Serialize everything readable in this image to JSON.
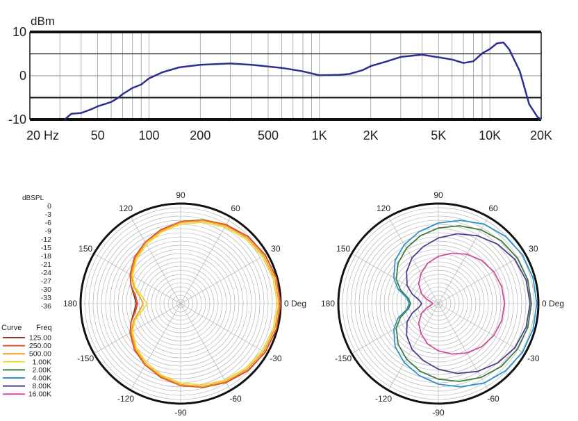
{
  "chart_data": [
    {
      "type": "line",
      "title": "",
      "ylabel": "dBm",
      "xlabel": "",
      "x_scale": "log",
      "xlim": [
        20,
        20000
      ],
      "ylim": [
        -10,
        10
      ],
      "grid": true,
      "x_tick_labels": [
        {
          "value": 20,
          "label": "20  Hz"
        },
        {
          "value": 50,
          "label": "50"
        },
        {
          "value": 100,
          "label": "100"
        },
        {
          "value": 200,
          "label": "200"
        },
        {
          "value": 500,
          "label": "500"
        },
        {
          "value": 1000,
          "label": "1K"
        },
        {
          "value": 2000,
          "label": "2K"
        },
        {
          "value": 5000,
          "label": "5K"
        },
        {
          "value": 10000,
          "label": "10K"
        },
        {
          "value": 20000,
          "label": "20K"
        }
      ],
      "y_tick_labels": [
        {
          "value": 10,
          "label": "10"
        },
        {
          "value": 0,
          "label": "0"
        },
        {
          "value": -10,
          "label": "-10"
        }
      ],
      "reference_lines_y": [
        5,
        -5
      ],
      "color": "#2b2f8f",
      "series": [
        {
          "x": [
            32,
            35,
            40,
            45,
            50,
            60,
            65,
            70,
            80,
            90,
            100,
            120,
            150,
            200,
            300,
            400,
            600,
            800,
            1000,
            1300,
            1500,
            1800,
            2000,
            2500,
            3000,
            4000,
            5000,
            6000,
            7000,
            8000,
            9000,
            10000,
            11000,
            12000,
            13000,
            15000,
            17000,
            19000,
            20000
          ],
          "y": [
            -10,
            -8.7,
            -8.5,
            -7.8,
            -7,
            -6,
            -5.2,
            -4.2,
            -2.8,
            -2,
            -0.6,
            0.8,
            1.9,
            2.5,
            2.8,
            2.5,
            1.8,
            1.0,
            0.1,
            0.2,
            0.4,
            1.3,
            2.2,
            3.3,
            4.3,
            4.8,
            4.2,
            3.7,
            2.9,
            3.3,
            5.1,
            6.1,
            7.4,
            7.6,
            6.0,
            1.0,
            -6.5,
            -9.4,
            -10
          ]
        }
      ]
    },
    {
      "type": "polar",
      "title": "",
      "rlabel": "dBSPL",
      "r_tick_labels": [
        "0",
        "-3",
        "-6",
        "-9",
        "-12",
        "-15",
        "-18",
        "-21",
        "-24",
        "-27",
        "-30",
        "-33",
        "-36"
      ],
      "rlim": [
        -36,
        0
      ],
      "angle_labels": [
        {
          "deg": 0,
          "label": "0 Deg"
        },
        {
          "deg": 30,
          "label": "30"
        },
        {
          "deg": 60,
          "label": "60"
        },
        {
          "deg": 90,
          "label": "90"
        },
        {
          "deg": 120,
          "label": "120"
        },
        {
          "deg": 150,
          "label": "150"
        },
        {
          "deg": 180,
          "label": "180"
        },
        {
          "deg": -150,
          "label": "-150"
        },
        {
          "deg": -120,
          "label": "-120"
        },
        {
          "deg": -90,
          "label": "-90"
        },
        {
          "deg": -60,
          "label": "-60"
        },
        {
          "deg": -30,
          "label": "-30"
        }
      ],
      "legend": {
        "placement": "left",
        "header_curve": "Curve",
        "header_freq": "Freq",
        "entries": [
          {
            "label": "125.00",
            "color": "#8b3a2a"
          },
          {
            "label": "250.00",
            "color": "#d9502a"
          },
          {
            "label": "500.00",
            "color": "#f0a020"
          },
          {
            "label": "1.00K",
            "color": "#ecd83a"
          },
          {
            "label": "2.00K",
            "color": "#3e7a3e"
          },
          {
            "label": "4.00K",
            "color": "#2e93c8"
          },
          {
            "label": "8.00K",
            "color": "#4a3e8c"
          },
          {
            "label": "16.00K",
            "color": "#d04a9a"
          }
        ]
      },
      "angles": [
        0,
        15,
        30,
        45,
        60,
        75,
        90,
        105,
        120,
        135,
        150,
        160,
        170,
        180
      ],
      "series": [
        {
          "name": "125.00",
          "color": "#8b3a2a",
          "values": [
            0,
            -0.3,
            -0.9,
            -1.8,
            -3.2,
            -4.8,
            -6.5,
            -8.5,
            -10.5,
            -12.5,
            -15.0,
            -17.0,
            -19.0,
            -20.0
          ]
        },
        {
          "name": "250.00",
          "color": "#d9502a",
          "values": [
            0,
            -0.3,
            -0.9,
            -1.8,
            -3.2,
            -4.8,
            -6.5,
            -8.5,
            -10.5,
            -12.5,
            -15.0,
            -17.0,
            -19.5,
            -20.5
          ]
        },
        {
          "name": "500.00",
          "color": "#f0a020",
          "values": [
            -0.6,
            -0.9,
            -1.5,
            -2.4,
            -3.6,
            -5.1,
            -6.8,
            -8.9,
            -10.8,
            -13.0,
            -15.5,
            -18.0,
            -21.0,
            -22.5
          ]
        },
        {
          "name": "1.00K",
          "color": "#ecd83a",
          "values": [
            -1.2,
            -1.5,
            -2.1,
            -3.0,
            -4.2,
            -5.7,
            -7.4,
            -9.4,
            -11.4,
            -13.5,
            -16.0,
            -18.5,
            -22.0,
            -24.0
          ]
        }
      ]
    },
    {
      "type": "polar",
      "title": "",
      "rlim": [
        -36,
        0
      ],
      "angle_labels": [
        {
          "deg": 0,
          "label": "0 Deg"
        },
        {
          "deg": 30,
          "label": "30"
        },
        {
          "deg": 60,
          "label": "60"
        },
        {
          "deg": 90,
          "label": "90"
        },
        {
          "deg": 120,
          "label": "120"
        },
        {
          "deg": 150,
          "label": "150"
        },
        {
          "deg": 180,
          "label": "180"
        },
        {
          "deg": -150,
          "label": "-150"
        },
        {
          "deg": -120,
          "label": "-120"
        },
        {
          "deg": -90,
          "label": "-90"
        },
        {
          "deg": -60,
          "label": "-60"
        },
        {
          "deg": -30,
          "label": "-30"
        }
      ],
      "angles": [
        0,
        15,
        30,
        45,
        60,
        75,
        90,
        105,
        120,
        135,
        150,
        160,
        170,
        180
      ],
      "series": [
        {
          "name": "2.00K",
          "color": "#3e7a3e",
          "values": [
            -2.5,
            -2.7,
            -3.2,
            -4.0,
            -5.3,
            -7.0,
            -8.8,
            -10.8,
            -13.0,
            -15.5,
            -18.5,
            -21.5,
            -25.0,
            -26.0
          ]
        },
        {
          "name": "4.00K",
          "color": "#2e93c8",
          "values": [
            -0.6,
            -0.7,
            -1.0,
            -1.8,
            -3.0,
            -5.0,
            -7.0,
            -9.2,
            -11.5,
            -14.0,
            -17.5,
            -20.5,
            -24.5,
            -25.5
          ]
        },
        {
          "name": "8.00K",
          "color": "#4a3e8c",
          "values": [
            -3.0,
            -3.3,
            -4.2,
            -5.8,
            -7.8,
            -10.0,
            -12.4,
            -14.8,
            -17.0,
            -19.8,
            -23.0,
            -26.0,
            -29.0,
            -30.0
          ]
        },
        {
          "name": "16.00K",
          "color": "#d04a9a",
          "values": [
            -12.2,
            -12.4,
            -13.0,
            -14.0,
            -15.5,
            -17.2,
            -19.0,
            -21.0,
            -23.5,
            -26.0,
            -29.0,
            -31.5,
            -33.5,
            -34.0
          ]
        }
      ]
    }
  ]
}
